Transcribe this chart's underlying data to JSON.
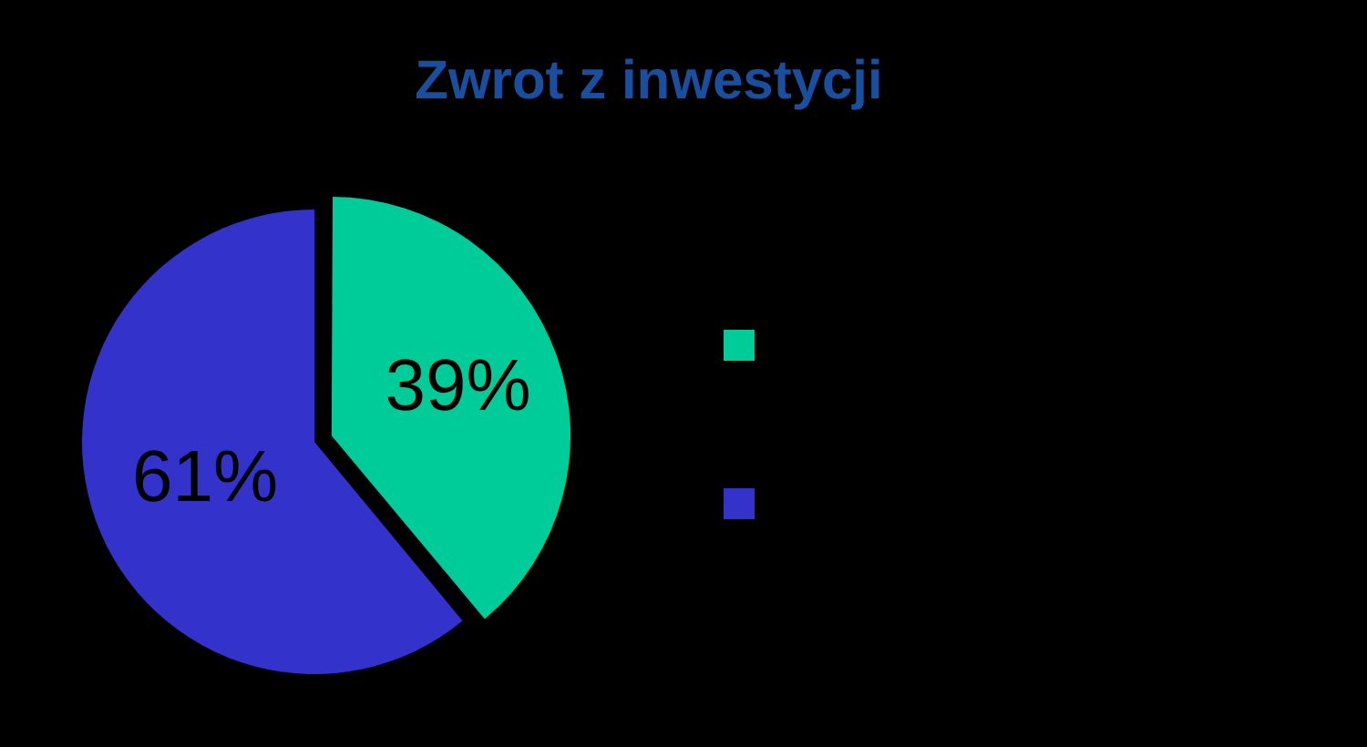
{
  "chart_data": {
    "type": "pie",
    "title": "Zwrot z inwestycji",
    "categories": [
      null,
      null
    ],
    "values": [
      39,
      61
    ],
    "colors": [
      "#00cc99",
      "#3333cc"
    ],
    "value_labels": [
      "39%",
      "61%"
    ]
  }
}
